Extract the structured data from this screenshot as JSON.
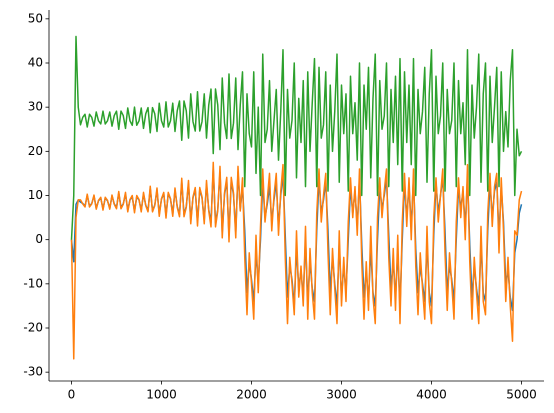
{
  "chart_data": {
    "type": "line",
    "x": [
      0,
      25,
      50,
      75,
      100,
      125,
      150,
      175,
      200,
      225,
      250,
      275,
      300,
      325,
      350,
      375,
      400,
      425,
      450,
      475,
      500,
      525,
      550,
      575,
      600,
      625,
      650,
      675,
      700,
      725,
      750,
      775,
      800,
      825,
      850,
      875,
      900,
      925,
      950,
      975,
      1000,
      1025,
      1050,
      1075,
      1100,
      1125,
      1150,
      1175,
      1200,
      1225,
      1250,
      1275,
      1300,
      1325,
      1350,
      1375,
      1400,
      1425,
      1450,
      1475,
      1500,
      1525,
      1550,
      1575,
      1600,
      1625,
      1650,
      1675,
      1700,
      1725,
      1750,
      1775,
      1800,
      1825,
      1850,
      1875,
      1900,
      1925,
      1950,
      1975,
      2000,
      2025,
      2050,
      2075,
      2100,
      2125,
      2150,
      2175,
      2200,
      2225,
      2250,
      2275,
      2300,
      2325,
      2350,
      2375,
      2400,
      2425,
      2450,
      2475,
      2500,
      2525,
      2550,
      2575,
      2600,
      2625,
      2650,
      2675,
      2700,
      2725,
      2750,
      2775,
      2800,
      2825,
      2850,
      2875,
      2900,
      2925,
      2950,
      2975,
      3000,
      3025,
      3050,
      3075,
      3100,
      3125,
      3150,
      3175,
      3200,
      3225,
      3250,
      3275,
      3300,
      3325,
      3350,
      3375,
      3400,
      3425,
      3450,
      3475,
      3500,
      3525,
      3550,
      3575,
      3600,
      3625,
      3650,
      3675,
      3700,
      3725,
      3750,
      3775,
      3800,
      3825,
      3850,
      3875,
      3900,
      3925,
      3950,
      3975,
      4000,
      4025,
      4050,
      4075,
      4100,
      4125,
      4150,
      4175,
      4200,
      4225,
      4250,
      4275,
      4300,
      4325,
      4350,
      4375,
      4400,
      4425,
      4450,
      4475,
      4500,
      4525,
      4550,
      4575,
      4600,
      4625,
      4650,
      4675,
      4700,
      4725,
      4750,
      4775,
      4800,
      4825,
      4850,
      4875,
      4900,
      4925,
      4950,
      4975,
      5000
    ],
    "series": [
      {
        "color": "#1f77b4",
        "values": [
          0,
          -5,
          8,
          9,
          8.5,
          8.2,
          7.6,
          10,
          7.6,
          8.2,
          9.9,
          7.1,
          8.8,
          9.4,
          7,
          9.4,
          8.8,
          7.1,
          9.9,
          8.1,
          7.3,
          10.5,
          7.3,
          8.1,
          10.3,
          6.7,
          9,
          9.7,
          6.5,
          9.7,
          9,
          6.7,
          10.3,
          7.8,
          6.6,
          11.5,
          6.6,
          7.8,
          11.2,
          5.8,
          9.2,
          10.4,
          5.5,
          10.4,
          9.2,
          5.8,
          11.2,
          7.5,
          5.7,
          13,
          5.7,
          7.5,
          12.6,
          4.4,
          9.5,
          11.3,
          4,
          11.3,
          9.5,
          4.4,
          12.6,
          6.8,
          3.8,
          16,
          3.8,
          6.8,
          15.3,
          1.7,
          10.2,
          13.2,
          1,
          13.2,
          10.2,
          1.7,
          15.3,
          6.8,
          12,
          2,
          -12,
          -5,
          -9,
          -14,
          -3,
          -10,
          0,
          13,
          5,
          8,
          12,
          4,
          9,
          13,
          3,
          10,
          15,
          1,
          -13,
          -6,
          -9,
          -15,
          -2,
          -11,
          -7,
          -13,
          0,
          -14,
          -5,
          -11,
          -14,
          2,
          14,
          6,
          9,
          13,
          2,
          -12,
          -4,
          -10,
          -15,
          -1,
          -13,
          -6,
          -12,
          0,
          12,
          6,
          11,
          3,
          14,
          -1,
          -13,
          -7,
          -14,
          -2,
          -12,
          -15,
          0,
          12,
          7,
          10,
          14,
          1,
          -11,
          -5,
          -13,
          -3,
          -15,
          0,
          13,
          5,
          12,
          3,
          14,
          -2,
          -12,
          -6,
          -10,
          -14,
          -1,
          -12,
          -15,
          1,
          13,
          6,
          10,
          14,
          2,
          -12,
          -6,
          -9,
          -14,
          0,
          12,
          7,
          11,
          3,
          14,
          -1,
          -13,
          -6,
          -11,
          -15,
          -1,
          -12,
          -14,
          2,
          13,
          5,
          11,
          13,
          1,
          12,
          4,
          -10,
          -7,
          -13,
          -16,
          -3,
          0,
          6,
          8
        ]
      },
      {
        "color": "#ff7f0e",
        "values": [
          0,
          -27,
          5,
          9,
          9,
          8.1,
          7.4,
          10.3,
          7.4,
          8.1,
          10.1,
          6.9,
          8.9,
          9.6,
          6.7,
          9.6,
          8.9,
          6.9,
          10.1,
          8,
          7,
          10.9,
          7,
          8,
          10.7,
          6.3,
          9.1,
          10,
          6.1,
          10,
          9.1,
          6.3,
          10.7,
          7.7,
          6.3,
          12.1,
          6.3,
          7.7,
          11.7,
          5.3,
          9.3,
          10.7,
          4.9,
          10.7,
          9.3,
          5.3,
          11.7,
          7.3,
          5.2,
          13.9,
          5.2,
          7.3,
          13.4,
          3.6,
          9.7,
          11.8,
          3.1,
          11.8,
          9.7,
          3.6,
          13.4,
          6.5,
          2.9,
          17.5,
          2.9,
          6.5,
          16.6,
          0.4,
          10.6,
          14.1,
          -0.5,
          14.1,
          10.6,
          0.4,
          16.6,
          6.5,
          14,
          -4,
          -17,
          -3,
          -10,
          -18,
          1,
          -12,
          3,
          16,
          4,
          9,
          15,
          2,
          10,
          15,
          1,
          11,
          17,
          -4,
          -19,
          -4,
          -10,
          -17,
          2,
          -13,
          -6,
          -15,
          3,
          -18,
          -2,
          -12,
          -18,
          6,
          16,
          4,
          10,
          15,
          -3,
          -17,
          -2,
          -11,
          -19,
          2,
          -15,
          -4,
          -14,
          4,
          14,
          5,
          12,
          1,
          16,
          -5,
          -18,
          -5,
          -16,
          3,
          -13,
          -19,
          5,
          14,
          5,
          11,
          16,
          -4,
          -15,
          -2,
          -16,
          1,
          -19,
          4,
          15,
          3,
          14,
          0,
          16,
          -6,
          -17,
          -3,
          -11,
          -18,
          3,
          -14,
          -19,
          5,
          14,
          4,
          10,
          16,
          -3,
          -16,
          -3,
          -10,
          -18,
          4,
          14,
          5,
          12,
          0,
          17,
          -5,
          -18,
          -4,
          -12,
          -19,
          3,
          -14,
          -17,
          6,
          15,
          3,
          12,
          15,
          -3,
          14,
          2,
          -14,
          -4,
          -15,
          -23,
          2,
          1,
          9,
          11
        ]
      },
      {
        "color": "#2ca02c",
        "values": [
          0,
          10,
          46,
          30,
          26,
          27.7,
          28.4,
          25.5,
          28.4,
          27.7,
          25.7,
          28.9,
          26.9,
          26.2,
          29.1,
          26.2,
          26.9,
          28.9,
          25.7,
          28.1,
          29.1,
          25,
          29.1,
          28.1,
          25.2,
          29.8,
          26.9,
          25.9,
          30,
          25.9,
          26.9,
          29.8,
          25.2,
          28.5,
          29.9,
          24.2,
          29.9,
          28.5,
          24.5,
          30.9,
          26.9,
          25.5,
          31.2,
          25.5,
          26.9,
          30.9,
          24.5,
          29.2,
          31.4,
          22.5,
          31.4,
          29.2,
          23,
          33,
          26.7,
          24.6,
          33.5,
          24.6,
          26.7,
          33,
          23,
          30.5,
          34.1,
          19.5,
          34.1,
          30.5,
          20.4,
          36.6,
          26.4,
          22.9,
          37.5,
          22.9,
          26.4,
          36.6,
          20.4,
          30.5,
          38,
          12,
          33,
          24,
          21,
          38,
          15,
          30,
          10,
          42,
          22,
          25,
          36,
          20,
          27,
          34,
          18,
          29,
          43,
          10,
          34,
          23,
          27,
          40,
          14,
          32,
          22,
          36,
          12,
          38,
          20,
          31,
          41,
          12,
          39,
          23,
          26,
          38,
          11,
          35,
          20,
          29,
          42,
          13,
          35,
          24,
          33,
          11,
          37,
          24,
          31,
          18,
          40,
          10,
          35,
          25,
          39,
          14,
          32,
          42,
          10,
          36,
          25,
          28,
          40,
          12,
          34,
          22,
          37,
          17,
          41,
          11,
          38,
          22,
          35,
          17,
          41,
          10,
          34,
          24,
          29,
          39,
          13,
          33,
          43,
          11,
          37,
          24,
          28,
          40,
          11,
          34,
          24,
          27,
          40,
          12,
          36,
          24,
          31,
          17,
          43,
          10,
          35,
          23,
          30,
          42,
          13,
          33,
          40,
          11,
          37,
          22,
          30,
          39,
          12,
          38,
          20,
          29,
          21,
          36,
          43,
          10,
          25,
          19,
          20
        ]
      }
    ],
    "xlim": [
      -250,
      5250
    ],
    "xticks": [
      0,
      1000,
      2000,
      3000,
      4000,
      5000
    ],
    "ylim": [
      -32,
      52
    ],
    "yticks": [
      -30,
      -20,
      -10,
      0,
      10,
      20,
      30,
      40,
      50
    ]
  }
}
